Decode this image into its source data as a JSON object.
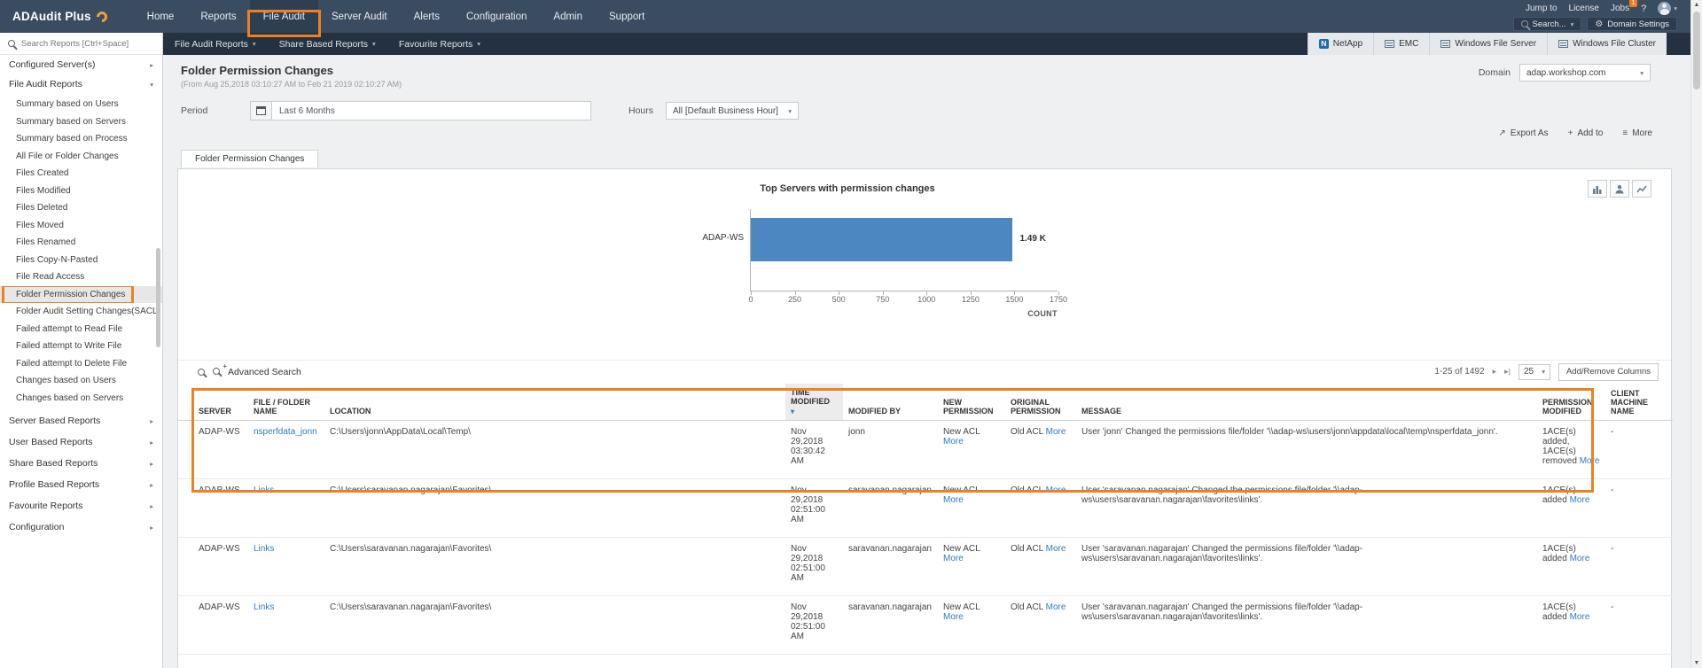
{
  "colors": {
    "accent_orange": "#ee8021",
    "link_blue": "#2f7cc0",
    "bar_blue": "#4d87c1"
  },
  "topnav": {
    "logo_text": "ADAudit Plus",
    "items": [
      {
        "label": "Home"
      },
      {
        "label": "Reports"
      },
      {
        "label": "File Audit"
      },
      {
        "label": "Server Audit"
      },
      {
        "label": "Alerts"
      },
      {
        "label": "Configuration"
      },
      {
        "label": "Admin"
      },
      {
        "label": "Support"
      }
    ],
    "jump_to": "Jump to",
    "license": "License",
    "jobs": "Jobs",
    "jobs_badge": "1",
    "help": "?",
    "search_button": "Search...",
    "domain_settings": "Domain Settings"
  },
  "toolbar": {
    "menus": [
      "File Audit Reports",
      "Share Based Reports",
      "Favourite Reports"
    ],
    "server_tabs": [
      "NetApp",
      "EMC",
      "Windows File Server",
      "Windows File Cluster"
    ]
  },
  "sidebar": {
    "search_placeholder": "Search Reports [Ctrl+Space]",
    "configured_servers": "Configured Server(s)",
    "file_audit_reports": "File Audit Reports",
    "file_audit_items": [
      "Summary based on Users",
      "Summary based on Servers",
      "Summary based on Process",
      "All File or Folder Changes",
      "Files Created",
      "Files Modified",
      "Files Deleted",
      "Files Moved",
      "Files Renamed",
      "Files Copy-N-Pasted",
      "File Read Access",
      "Folder Permission Changes",
      "Folder Audit Setting Changes(SACL)",
      "Failed attempt to Read File",
      "Failed attempt to Write File",
      "Failed attempt to Delete File",
      "Changes based on Users",
      "Changes based on Servers"
    ],
    "selected_item": "Folder Permission Changes",
    "sections": [
      "Server Based Reports",
      "User Based Reports",
      "Share Based Reports",
      "Profile Based Reports",
      "Favourite Reports",
      "Configuration"
    ]
  },
  "page": {
    "title": "Folder Permission Changes",
    "subtitle": "(From Aug 25,2018 03:10:27 AM to Feb 21 2019 02:10:27 AM)",
    "domain_label": "Domain",
    "domain_value": "adap.workshop.com",
    "period_label": "Period",
    "period_value": "Last 6 Months",
    "hours_label": "Hours",
    "hours_value": "All [Default Business Hour]",
    "export_as": "Export As",
    "add_to": "Add to",
    "more": "More",
    "tab": "Folder Permission Changes"
  },
  "chart_data": {
    "type": "bar",
    "orientation": "horizontal",
    "title": "Top Servers with permission changes",
    "categories": [
      "ADAP-WS"
    ],
    "values": [
      1490
    ],
    "value_labels": [
      "1.49 K"
    ],
    "xlabel": "COUNT",
    "xticks": [
      0,
      250,
      500,
      750,
      1000,
      1250,
      1500,
      1750
    ],
    "xlim": [
      0,
      1750
    ],
    "bar_color": "#4d87c1",
    "grid": false,
    "legend": "none"
  },
  "table": {
    "advanced_search": "Advanced Search",
    "pagination_range": "1-25 of 1492",
    "page_size": "25",
    "add_remove_columns": "Add/Remove Columns",
    "more_label": "More",
    "columns": [
      "SERVER",
      "FILE / FOLDER NAME",
      "LOCATION",
      "TIME MODIFIED",
      "MODIFIED BY",
      "NEW PERMISSION",
      "ORIGINAL PERMISSION",
      "MESSAGE",
      "PERMISSION MODIFIED",
      "CLIENT MACHINE NAME"
    ],
    "rows": [
      {
        "server": "ADAP-WS",
        "file_name": "nsperfdata_jonn",
        "location": "C:\\Users\\jonn\\AppData\\Local\\Temp\\",
        "time_modified": "Nov 29,2018 03:30:42 AM",
        "modified_by": "jonn",
        "new_permission": "New ACL",
        "original_permission": "Old ACL",
        "message": "User 'jonn' Changed the permissions file/folder '\\\\adap-ws\\users\\jonn\\appdata\\local\\temp\\nsperfdata_jonn'.",
        "permission_modified": "1ACE(s) added, 1ACE(s) removed",
        "client_machine": "-"
      },
      {
        "server": "ADAP-WS",
        "file_name": "Links",
        "location": "C:\\Users\\saravanan.nagarajan\\Favorites\\",
        "time_modified": "Nov 29,2018 02:51:00 AM",
        "modified_by": "saravanan.nagarajan",
        "new_permission": "New ACL",
        "original_permission": "Old ACL",
        "message": "User 'saravanan.nagarajan' Changed the permissions file/folder '\\\\adap-ws\\users\\saravanan.nagarajan\\favorites\\links'.",
        "permission_modified": "1ACE(s) added",
        "client_machine": "-"
      },
      {
        "server": "ADAP-WS",
        "file_name": "Links",
        "location": "C:\\Users\\saravanan.nagarajan\\Favorites\\",
        "time_modified": "Nov 29,2018 02:51:00 AM",
        "modified_by": "saravanan.nagarajan",
        "new_permission": "New ACL",
        "original_permission": "Old ACL",
        "message": "User 'saravanan.nagarajan' Changed the permissions file/folder '\\\\adap-ws\\users\\saravanan.nagarajan\\favorites\\links'.",
        "permission_modified": "1ACE(s) added",
        "client_machine": "-"
      },
      {
        "server": "ADAP-WS",
        "file_name": "Links",
        "location": "C:\\Users\\saravanan.nagarajan\\Favorites\\",
        "time_modified": "Nov 29,2018 02:51:00 AM",
        "modified_by": "saravanan.nagarajan",
        "new_permission": "New ACL",
        "original_permission": "Old ACL",
        "message": "User 'saravanan.nagarajan' Changed the permissions file/folder '\\\\adap-ws\\users\\saravanan.nagarajan\\favorites\\links'.",
        "permission_modified": "1ACE(s) added",
        "client_machine": "-"
      }
    ]
  }
}
